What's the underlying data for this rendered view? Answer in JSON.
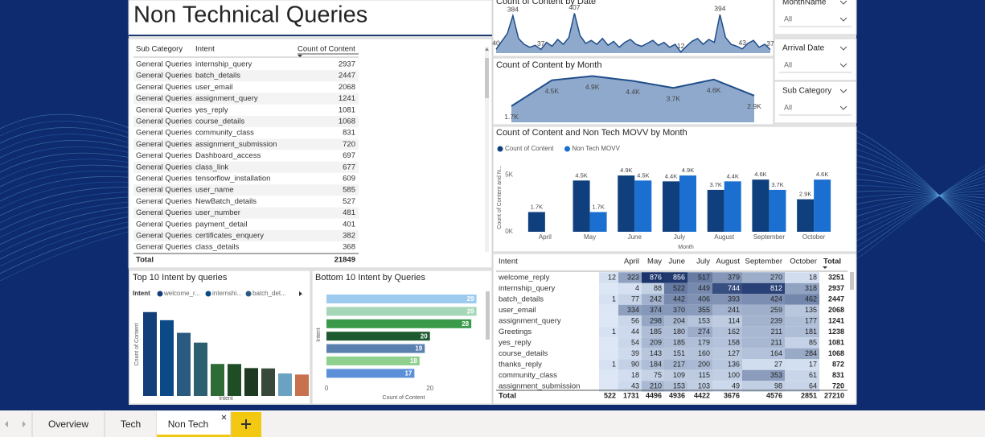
{
  "header": {
    "title": "Non Technical Queries"
  },
  "table": {
    "columns": [
      "Sub Category",
      "Intent",
      "Count of Content"
    ],
    "rows": [
      [
        "General Queries",
        "internship_query",
        2937
      ],
      [
        "General Queries",
        "batch_details",
        2447
      ],
      [
        "General Queries",
        "user_email",
        2068
      ],
      [
        "General Queries",
        "assignment_query",
        1241
      ],
      [
        "General Queries",
        "yes_reply",
        1081
      ],
      [
        "General Queries",
        "course_details",
        1068
      ],
      [
        "General Queries",
        "community_class",
        831
      ],
      [
        "General Queries",
        "assignment_submission",
        720
      ],
      [
        "General Queries",
        "Dashboard_access",
        697
      ],
      [
        "General Queries",
        "class_link",
        677
      ],
      [
        "General Queries",
        "tensorflow_installation",
        609
      ],
      [
        "General Queries",
        "user_name",
        585
      ],
      [
        "General Queries",
        "NewBatch_details",
        527
      ],
      [
        "General Queries",
        "user_number",
        481
      ],
      [
        "General Queries",
        "payment_detail",
        401
      ],
      [
        "General Queries",
        "certificates_enquery",
        382
      ],
      [
        "General Queries",
        "class_details",
        368
      ]
    ],
    "total_label": "Total",
    "total": 21849
  },
  "filters": [
    {
      "label": "MonthName",
      "value": "All"
    },
    {
      "label": "Arrival Date",
      "value": "All"
    },
    {
      "label": "Sub Category",
      "value": "All"
    }
  ],
  "tabs": [
    {
      "label": "Overview",
      "active": false
    },
    {
      "label": "Tech",
      "active": false
    },
    {
      "label": "Non Tech",
      "active": true
    }
  ],
  "chart_data": [
    {
      "type": "area",
      "title": "Count of Content by Date",
      "color": "#1f4e8a",
      "ylim": [
        0,
        420
      ],
      "values": [
        40,
        120,
        200,
        384,
        150,
        90,
        60,
        80,
        37,
        110,
        70,
        140,
        90,
        160,
        407,
        180,
        100,
        130,
        90,
        150,
        80,
        120,
        60,
        110,
        140,
        90,
        70,
        100,
        130,
        80,
        110,
        60,
        90,
        12,
        70,
        120,
        150,
        90,
        140,
        110,
        394,
        160,
        90,
        70,
        43,
        100,
        130,
        60,
        90,
        37
      ],
      "value_labels": [
        "40",
        null,
        null,
        "384",
        null,
        null,
        null,
        null,
        "37",
        null,
        null,
        null,
        null,
        null,
        "407",
        null,
        null,
        null,
        null,
        null,
        null,
        null,
        null,
        null,
        null,
        null,
        null,
        null,
        null,
        null,
        null,
        null,
        null,
        "12",
        null,
        null,
        null,
        null,
        null,
        null,
        "394",
        null,
        null,
        null,
        "43",
        null,
        null,
        null,
        null,
        "37"
      ]
    },
    {
      "type": "area",
      "title": "Count of Content by Month",
      "color": "#1f4e8a",
      "ylim": [
        0,
        5500
      ],
      "values": [
        1731,
        4496,
        4936,
        4422,
        3676,
        4576,
        2851
      ],
      "value_labels": [
        "1.7K",
        "4.5K",
        "4.9K",
        "4.4K",
        "3.7K",
        "4.6K",
        "2.9K"
      ]
    },
    {
      "type": "bar",
      "title": "Count of Content and Non Tech MOVV by Month",
      "categories": [
        "April",
        "May",
        "June",
        "July",
        "August",
        "September",
        "October"
      ],
      "series": [
        {
          "name": "Count of Content",
          "color": "#0f3f7c",
          "values": [
            1731,
            4496,
            4936,
            4422,
            3676,
            4576,
            2851
          ],
          "value_labels": [
            "1.7K",
            "4.5K",
            "4.9K",
            "4.4K",
            "3.7K",
            "4.6K",
            "2.9K"
          ]
        },
        {
          "name": "Non Tech MOVV",
          "color": "#1a6fd0",
          "values": [
            null,
            1731,
            4496,
            4936,
            4422,
            3676,
            4576
          ],
          "value_labels": [
            null,
            "1.7K",
            "4.5K",
            "4.9K",
            "4.4K",
            "3.7K",
            "4.6K"
          ]
        }
      ],
      "ylim": [
        0,
        6000
      ],
      "yticks": [
        {
          "value": 0,
          "label": "0K"
        },
        {
          "value": 5000,
          "label": "5K"
        }
      ],
      "y_label": "Count of Content and N...",
      "x_label": "Month"
    },
    {
      "type": "bar",
      "title": "Top 10 Intent by queries",
      "legend_title": "Intent",
      "legend": [
        "welcome_r...",
        "internshi...",
        "batch_det..."
      ],
      "values": [
        3251,
        2937,
        2447,
        2068,
        1241,
        1238,
        1081,
        1068,
        872,
        831
      ],
      "colors": [
        "#123f7a",
        "#0b4a86",
        "#2a5a80",
        "#2c6070",
        "#2e6b35",
        "#1f4d26",
        "#1d3a20",
        "#38493b",
        "#6aa3c2",
        "#c7714f"
      ],
      "ylim": [
        0,
        3400
      ],
      "y_label": "Count of Content",
      "x_label": "Intent"
    },
    {
      "type": "hbar",
      "title": "Bottom 10 Intent by Queries",
      "values": [
        29,
        29,
        28,
        20,
        19,
        18,
        17
      ],
      "colors": [
        "#9dcbf0",
        "#a6d6b8",
        "#3a9a4a",
        "#1e5a30",
        "#5a80b0",
        "#8fd08f",
        "#5b8fd8"
      ],
      "xlim": [
        0,
        30
      ],
      "xticks": [
        0,
        20
      ],
      "y_label": "Intent",
      "x_label": "Count of Content"
    }
  ],
  "matrix": {
    "row_header": "Intent",
    "columns": [
      null,
      "April",
      "May",
      "June",
      "July",
      "August",
      "September",
      "October"
    ],
    "total_header": "Total",
    "rows": [
      {
        "intent": "welcome_reply",
        "values": [
          12,
          323,
          876,
          856,
          517,
          379,
          270,
          18
        ],
        "total": 3251
      },
      {
        "intent": "internship_query",
        "values": [
          null,
          4,
          88,
          522,
          449,
          744,
          812,
          318
        ],
        "total": 2937
      },
      {
        "intent": "batch_details",
        "values": [
          1,
          77,
          242,
          442,
          406,
          393,
          424,
          462
        ],
        "total": 2447
      },
      {
        "intent": "user_email",
        "values": [
          null,
          334,
          374,
          370,
          355,
          241,
          259,
          135
        ],
        "total": 2068
      },
      {
        "intent": "assignment_query",
        "values": [
          null,
          56,
          298,
          204,
          153,
          114,
          239,
          177
        ],
        "total": 1241
      },
      {
        "intent": "Greetings",
        "values": [
          1,
          44,
          185,
          180,
          274,
          162,
          211,
          181
        ],
        "total": 1238
      },
      {
        "intent": "yes_reply",
        "values": [
          null,
          54,
          209,
          185,
          179,
          158,
          211,
          85
        ],
        "total": 1081
      },
      {
        "intent": "course_details",
        "values": [
          null,
          39,
          143,
          151,
          160,
          127,
          164,
          284
        ],
        "total": 1068
      },
      {
        "intent": "thanks_reply",
        "values": [
          1,
          90,
          184,
          217,
          200,
          136,
          27,
          17
        ],
        "total": 872
      },
      {
        "intent": "community_class",
        "values": [
          null,
          18,
          75,
          109,
          115,
          100,
          353,
          61
        ],
        "total": 831
      },
      {
        "intent": "assignment_submission",
        "values": [
          null,
          43,
          210,
          153,
          103,
          49,
          98,
          64
        ],
        "total": 720
      }
    ],
    "total_label": "Total",
    "totals": [
      522,
      1731,
      4496,
      4936,
      4422,
      3676,
      4576,
      2851
    ],
    "grand_total": 27210
  }
}
